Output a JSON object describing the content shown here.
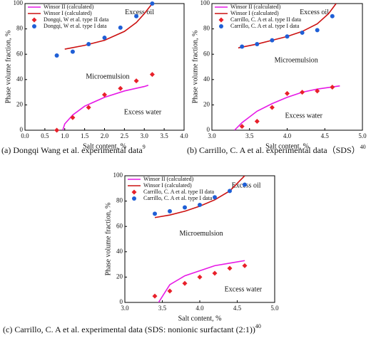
{
  "chart_data": [
    {
      "type": "line",
      "xlabel": "Salt content, %",
      "ylabel": "Phase volume fraction, %",
      "caption": "(a) Dongqi Wang et al. experimental data",
      "caption_ref": "9",
      "annotations": [
        "Excess oil",
        "Microemulsion",
        "Excess water"
      ],
      "xlim": [
        0,
        4
      ],
      "ylim": [
        0,
        100
      ],
      "xticks": [
        {
          "value": 0,
          "label": "0.0"
        },
        0.5,
        {
          "value": 1,
          "label": "1.0"
        },
        1.5,
        {
          "value": 2,
          "label": "2.0"
        },
        2.5,
        {
          "value": 3,
          "label": "3.0"
        },
        3.5,
        {
          "value": 4,
          "label": "4.0"
        }
      ],
      "yticks": [
        0,
        20,
        40,
        60,
        80,
        100
      ],
      "legend": "upper left",
      "series": [
        {
          "name": "Winsor II (calculated)",
          "kind": "line",
          "color": "#e619e6",
          "x": [
            0.95,
            1.0,
            1.2,
            1.5,
            2.0,
            2.5,
            3.0,
            3.1
          ],
          "values": [
            0,
            5,
            12,
            19,
            26,
            31,
            34.5,
            35.5
          ]
        },
        {
          "name": "Winsor I (calculated)",
          "kind": "line",
          "color": "#cc1111",
          "x": [
            1.0,
            1.5,
            2.0,
            2.5,
            2.8,
            3.0,
            3.2
          ],
          "values": [
            64,
            67,
            71,
            78,
            85,
            92,
            100
          ]
        },
        {
          "name": "Dongqi, W et al. type II data",
          "kind": "scatter",
          "marker": "diamond",
          "color": "#e8202a",
          "x": [
            0.8,
            1.2,
            1.6,
            2.0,
            2.4,
            2.8,
            3.2
          ],
          "values": [
            0,
            10,
            18,
            28,
            33,
            39,
            44
          ]
        },
        {
          "name": "Dongqi, W et al. type I data",
          "kind": "scatter",
          "marker": "circle",
          "color": "#1f5fd6",
          "x": [
            0.8,
            1.2,
            1.6,
            2.0,
            2.4,
            2.8,
            3.2
          ],
          "values": [
            59,
            62,
            68,
            73,
            81,
            90,
            100
          ]
        }
      ]
    },
    {
      "type": "line",
      "xlabel": "Salt content, %",
      "ylabel": "Phase volume fraction, %",
      "caption": "(b) Carrillo, C. A et al. experimental data（SDS）",
      "caption_ref": "40",
      "annotations": [
        "Excess oil",
        "Microemulsion",
        "Excess water"
      ],
      "xlim": [
        3,
        5
      ],
      "ylim": [
        0,
        100
      ],
      "xticks": [
        {
          "value": 3,
          "label": "3.0"
        },
        3.5,
        {
          "value": 4,
          "label": "4.0"
        },
        4.5,
        {
          "value": 5,
          "label": "5.0"
        }
      ],
      "yticks": [
        0,
        20,
        40,
        60,
        80,
        100
      ],
      "legend": "upper left",
      "series": [
        {
          "name": "Winsor II (calculated)",
          "kind": "line",
          "color": "#e619e6",
          "x": [
            3.3,
            3.4,
            3.6,
            3.8,
            4.0,
            4.2,
            4.4,
            4.7
          ],
          "values": [
            0,
            6,
            15,
            21,
            26,
            30,
            32.5,
            35
          ]
        },
        {
          "name": "Winsor I (calculated)",
          "kind": "line",
          "color": "#cc1111",
          "x": [
            3.35,
            3.6,
            3.8,
            4.0,
            4.2,
            4.4,
            4.55,
            4.65
          ],
          "values": [
            65,
            68,
            71,
            74,
            78,
            84,
            92,
            100
          ]
        },
        {
          "name": "Carrillo, C. A et al. type II data",
          "kind": "scatter",
          "marker": "diamond",
          "color": "#e8202a",
          "x": [
            3.4,
            3.6,
            3.8,
            4.0,
            4.2,
            4.4,
            4.6
          ],
          "values": [
            3,
            7,
            18,
            29,
            30,
            31,
            34
          ]
        },
        {
          "name": "Carrillo, C. A et al. type I data",
          "kind": "scatter",
          "marker": "circle",
          "color": "#1f5fd6",
          "x": [
            3.4,
            3.6,
            3.8,
            4.0,
            4.2,
            4.4,
            4.6
          ],
          "values": [
            66,
            68,
            71,
            74,
            77,
            79,
            90
          ]
        }
      ]
    },
    {
      "type": "line",
      "xlabel": "Salt content, %",
      "ylabel": "Phase volume fraction, %",
      "caption": "(c) Carrillo, C. A et al. experimental data (SDS: nonionic surfactant (2:1))",
      "caption_ref": "40",
      "annotations": [
        "Excess oil",
        "Microemulsion",
        "Excess water"
      ],
      "xlim": [
        3,
        5
      ],
      "ylim": [
        0,
        100
      ],
      "xticks": [
        {
          "value": 3,
          "label": "3.0"
        },
        3.5,
        {
          "value": 4,
          "label": "4.0"
        },
        4.5,
        {
          "value": 5,
          "label": "5.0"
        }
      ],
      "yticks": [
        0,
        20,
        40,
        60,
        80,
        100
      ],
      "legend": "upper left",
      "series": [
        {
          "name": "Winsor II (calculated)",
          "kind": "line",
          "color": "#e619e6",
          "x": [
            3.45,
            3.6,
            3.8,
            4.0,
            4.2,
            4.4,
            4.6
          ],
          "values": [
            0,
            14,
            21,
            25,
            29,
            31,
            33
          ]
        },
        {
          "name": "Winsor I (calculated)",
          "kind": "line",
          "color": "#cc1111",
          "x": [
            3.4,
            3.6,
            3.8,
            4.0,
            4.2,
            4.4,
            4.55,
            4.6
          ],
          "values": [
            67,
            69,
            72,
            76,
            81,
            88,
            97,
            100
          ]
        },
        {
          "name": "Carrillo, C. A et al. type II data",
          "kind": "scatter",
          "marker": "diamond",
          "color": "#e8202a",
          "x": [
            3.4,
            3.6,
            3.8,
            4.0,
            4.2,
            4.4,
            4.6
          ],
          "values": [
            5,
            9,
            15,
            20,
            23,
            27,
            29
          ]
        },
        {
          "name": "Carrillo, C. A et al. type I data",
          "kind": "scatter",
          "marker": "circle",
          "color": "#1f5fd6",
          "x": [
            3.4,
            3.6,
            3.8,
            4.0,
            4.2,
            4.4,
            4.6
          ],
          "values": [
            70,
            72,
            75,
            77,
            83,
            88,
            93
          ]
        }
      ]
    }
  ]
}
